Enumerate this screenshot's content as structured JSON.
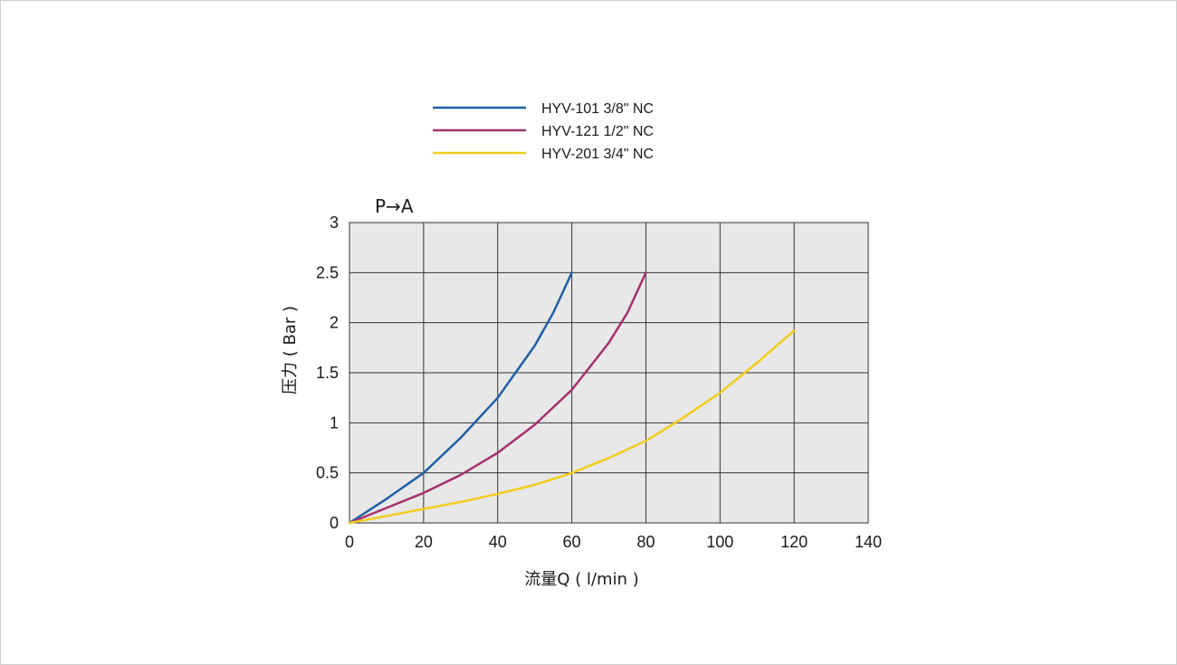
{
  "chart_data": {
    "type": "line",
    "title": "P→A",
    "xlabel": "流量Q ( l/min )",
    "ylabel": "压力 ( Bar )",
    "xlim": [
      0,
      140
    ],
    "ylim": [
      0,
      3
    ],
    "xticks": [
      "0",
      "20",
      "40",
      "60",
      "80",
      "100",
      "120",
      "140"
    ],
    "yticks": [
      "0",
      "0.5",
      "1",
      "1.5",
      "2",
      "2.5",
      "3"
    ],
    "grid": true,
    "legend_position": "top",
    "plot_background": "#e8e8e8",
    "series": [
      {
        "name": "HYV-101 3/8\" NC",
        "color": "#1f5fa8",
        "x": [
          0,
          10,
          20,
          30,
          40,
          50,
          55,
          60
        ],
        "y": [
          0,
          0.24,
          0.5,
          0.85,
          1.25,
          1.77,
          2.1,
          2.5
        ]
      },
      {
        "name": "HYV-121 1/2\" NC",
        "color": "#a6306e",
        "x": [
          0,
          10,
          20,
          30,
          40,
          50,
          60,
          70,
          75,
          80
        ],
        "y": [
          0,
          0.15,
          0.3,
          0.48,
          0.7,
          0.98,
          1.33,
          1.8,
          2.1,
          2.5
        ]
      },
      {
        "name": "HYV-201 3/4\" NC",
        "color": "#f2cd1a",
        "x": [
          0,
          10,
          20,
          30,
          40,
          50,
          60,
          70,
          80,
          90,
          100,
          110,
          120
        ],
        "y": [
          0,
          0.07,
          0.14,
          0.21,
          0.29,
          0.38,
          0.5,
          0.65,
          0.82,
          1.05,
          1.3,
          1.6,
          1.92
        ]
      }
    ]
  }
}
